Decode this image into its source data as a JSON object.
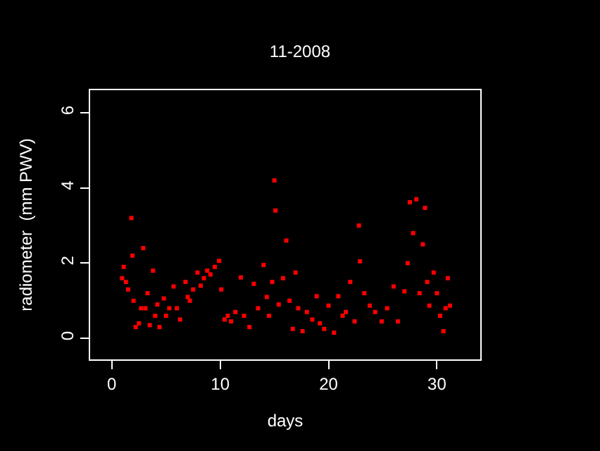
{
  "chart_data": {
    "type": "scatter",
    "title": "11-2008",
    "xlabel": "days",
    "ylabel": "radiometer  (mm PWV)",
    "x": [
      0.95,
      1.1,
      1.3,
      1.5,
      1.8,
      1.9,
      2.0,
      2.2,
      2.5,
      2.7,
      2.9,
      3.1,
      3.3,
      3.5,
      3.8,
      4.0,
      4.2,
      4.4,
      4.8,
      5.0,
      5.3,
      5.7,
      6.0,
      6.3,
      6.8,
      7.0,
      7.2,
      7.5,
      7.9,
      8.2,
      8.5,
      8.8,
      9.1,
      9.5,
      9.9,
      10.1,
      10.4,
      10.7,
      11.0,
      11.4,
      11.9,
      12.2,
      12.7,
      13.1,
      13.5,
      14.0,
      14.3,
      14.5,
      14.8,
      15.0,
      15.1,
      15.4,
      15.8,
      16.1,
      16.4,
      16.7,
      16.95,
      17.2,
      17.6,
      18.0,
      18.5,
      18.9,
      19.2,
      19.6,
      20.0,
      20.5,
      20.9,
      21.3,
      21.6,
      22.0,
      22.4,
      22.8,
      22.9,
      23.3,
      23.8,
      24.3,
      24.9,
      25.4,
      26.0,
      26.4,
      27.0,
      27.3,
      27.5,
      27.8,
      28.1,
      28.4,
      28.7,
      28.9,
      29.1,
      29.3,
      29.7,
      30.0,
      30.3,
      30.6,
      30.8,
      31.0,
      31.2
    ],
    "series": [
      {
        "color": "#ff0000",
        "values": [
          1.6,
          1.9,
          1.5,
          1.3,
          3.2,
          2.2,
          1.0,
          0.3,
          0.4,
          0.8,
          2.4,
          0.8,
          1.2,
          0.35,
          1.8,
          0.6,
          0.9,
          0.3,
          1.06,
          0.6,
          0.8,
          1.38,
          0.8,
          0.5,
          1.5,
          1.1,
          1.0,
          1.3,
          1.75,
          1.4,
          1.6,
          1.8,
          1.7,
          1.9,
          2.06,
          1.3,
          0.5,
          0.6,
          0.45,
          0.7,
          1.62,
          0.6,
          0.3,
          1.45,
          0.8,
          1.95,
          1.1,
          0.6,
          1.5,
          4.2,
          3.4,
          0.9,
          1.6,
          2.6,
          1.0,
          0.25,
          1.75,
          0.8,
          0.19,
          0.7,
          0.5,
          1.12,
          0.4,
          0.25,
          0.87,
          0.15,
          1.12,
          0.6,
          0.7,
          1.5,
          0.45,
          3.0,
          2.05,
          1.2,
          0.87,
          0.7,
          0.45,
          0.8,
          1.38,
          0.45,
          1.25,
          2.0,
          3.62,
          2.8,
          3.7,
          1.2,
          2.5,
          3.47,
          1.5,
          0.87,
          1.75,
          1.2,
          0.6,
          0.19,
          0.8,
          1.6,
          0.87
        ]
      }
    ],
    "xlim": [
      -2,
      34
    ],
    "ylim": [
      -0.56,
      6.6
    ],
    "xticks": [
      0,
      10,
      20,
      30
    ],
    "yticks": [
      0,
      2,
      4,
      6
    ],
    "marker": "square",
    "grid": false
  }
}
